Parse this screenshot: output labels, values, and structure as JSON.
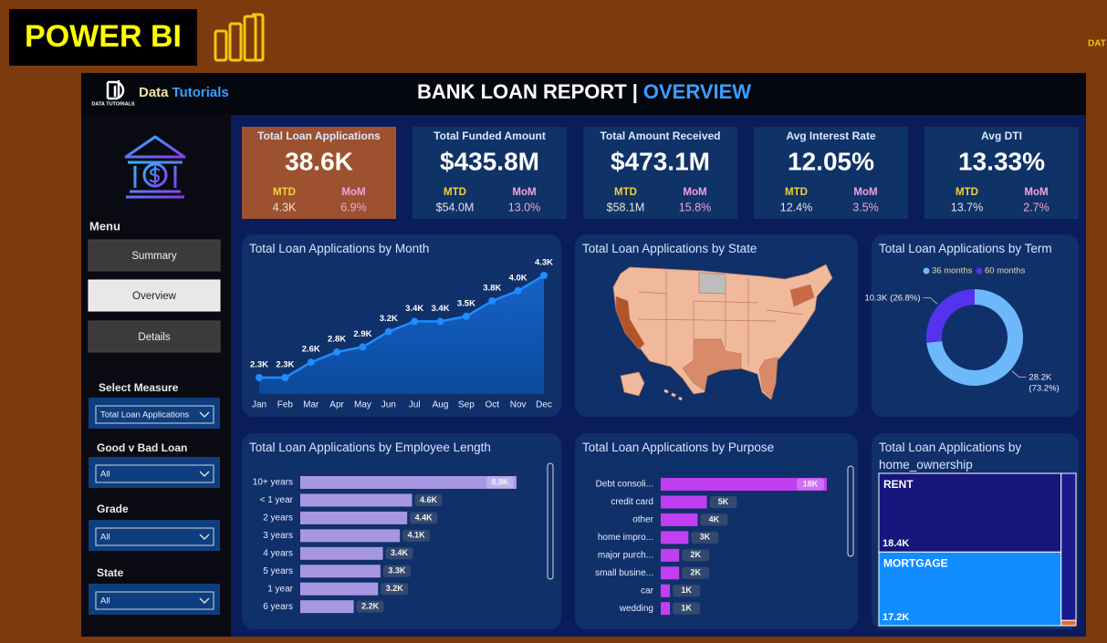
{
  "banner": {
    "title": "POWER BI",
    "corner_text": "DAT"
  },
  "header": {
    "logo_text": "DATA TUTORIALS",
    "brand_prefix": "Data",
    "brand_suffix": "Tutorials",
    "title": "BANK LOAN REPORT",
    "separator": "|",
    "subtitle": "OVERVIEW"
  },
  "sidebar": {
    "menu_title": "Menu",
    "buttons": [
      "Summary",
      "Overview",
      "Details"
    ],
    "active_button": 1,
    "filters": [
      {
        "label": "Select Measure",
        "value": "Total Loan Applications"
      },
      {
        "label": "Good v Bad Loan",
        "value": "All"
      },
      {
        "label": "Grade",
        "value": "All"
      },
      {
        "label": "State",
        "value": "All"
      }
    ]
  },
  "kpis": [
    {
      "title": "Total Loan Applications",
      "value": "38.6K",
      "mtd_label": "MTD",
      "mtd": "4.3K",
      "mom_label": "MoM",
      "mom": "6.9%"
    },
    {
      "title": "Total Funded Amount",
      "value": "$435.8M",
      "mtd_label": "MTD",
      "mtd": "$54.0M",
      "mom_label": "MoM",
      "mom": "13.0%"
    },
    {
      "title": "Total Amount Received",
      "value": "$473.1M",
      "mtd_label": "MTD",
      "mtd": "$58.1M",
      "mom_label": "MoM",
      "mom": "15.8%"
    },
    {
      "title": "Avg Interest Rate",
      "value": "12.05%",
      "mtd_label": "MTD",
      "mtd": "12.4%",
      "mom_label": "MoM",
      "mom": "3.5%"
    },
    {
      "title": "Avg DTI",
      "value": "13.33%",
      "mtd_label": "MTD",
      "mtd": "13.7%",
      "mom_label": "MoM",
      "mom": "2.7%"
    }
  ],
  "chart_data": [
    {
      "type": "area",
      "title": "Total Loan Applications by Month",
      "color": "#1f8cff",
      "categories": [
        "Jan",
        "Feb",
        "Mar",
        "Apr",
        "May",
        "Jun",
        "Jul",
        "Aug",
        "Sep",
        "Oct",
        "Nov",
        "Dec"
      ],
      "values": [
        2300,
        2300,
        2600,
        2800,
        2900,
        3200,
        3400,
        3400,
        3500,
        3800,
        4000,
        4300
      ],
      "value_labels": [
        "2.3K",
        "2.3K",
        "2.6K",
        "2.8K",
        "2.9K",
        "3.2K",
        "3.4K",
        "3.4K",
        "3.5K",
        "3.8K",
        "4.0K",
        "4.3K"
      ]
    },
    {
      "type": "map",
      "title": "Total Loan Applications by State"
    },
    {
      "type": "donut",
      "title": "Total Loan Applications by Term",
      "legend": "top",
      "categories": [
        "36 months",
        "60 months"
      ],
      "colors": [
        "#6cb8fa",
        "#5533ee"
      ],
      "values": [
        28200,
        10300
      ],
      "value_labels": [
        "28.2K",
        "10.3K"
      ],
      "share_labels": [
        "(73.2%)",
        "(26.8%)"
      ]
    },
    {
      "type": "barh",
      "title": "Total Loan Applications by Employee Length",
      "color": "#a797e3",
      "categories": [
        "10+ years",
        "< 1 year",
        "2 years",
        "3 years",
        "4 years",
        "5 years",
        "1 year",
        "6 years"
      ],
      "values": [
        8900,
        4600,
        4400,
        4100,
        3400,
        3300,
        3200,
        2200
      ],
      "value_labels": [
        "8.9K",
        "4.6K",
        "4.4K",
        "4.1K",
        "3.4K",
        "3.3K",
        "3.2K",
        "2.2K"
      ]
    },
    {
      "type": "barh",
      "title": "Total Loan Applications by Purpose",
      "color": "#c13ff0",
      "categories": [
        "Debt consoli...",
        "credit card",
        "other",
        "home impro...",
        "major purch...",
        "small busine...",
        "car",
        "wedding"
      ],
      "values": [
        18000,
        5000,
        4000,
        3000,
        2000,
        2000,
        1000,
        1000
      ],
      "value_labels": [
        "18K",
        "5K",
        "4K",
        "3K",
        "2K",
        "2K",
        "1K",
        "1K"
      ]
    },
    {
      "type": "treemap",
      "title": "Total Loan Applications by home_ownership",
      "categories": [
        "RENT",
        "MORTGAGE",
        null,
        null
      ],
      "colors": [
        "#16167d",
        "#118dff",
        "#1a1a8c",
        "#e66c37"
      ],
      "values": [
        18400,
        17200,
        2800,
        100
      ],
      "value_labels": [
        "18.4K",
        "17.2K",
        null,
        null
      ]
    }
  ]
}
